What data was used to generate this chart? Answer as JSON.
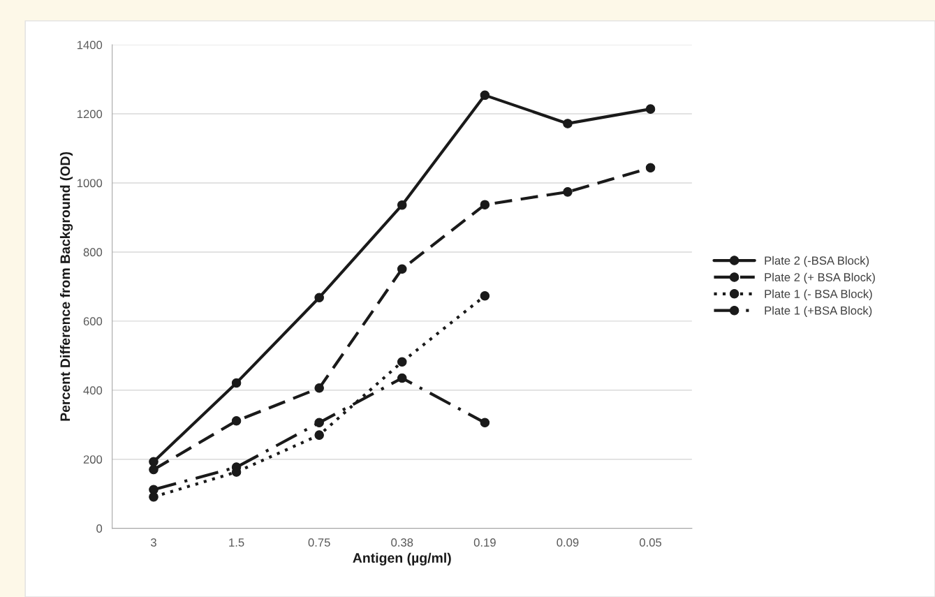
{
  "chart_data": {
    "type": "line",
    "xlabel": "Antigen (µg/ml)",
    "ylabel": "Percent Difference from Background (OD)",
    "categories": [
      "3",
      "1.5",
      "0.75",
      "0.38",
      "0.19",
      "0.09",
      "0.05"
    ],
    "series": [
      {
        "name": "Plate 2 (-BSA Block)",
        "color": "#1a1a1a",
        "line_style": "solid",
        "values": [
          193,
          421,
          668,
          936,
          1254,
          1172,
          1214
        ]
      },
      {
        "name": "Plate 2 (+ BSA Block)",
        "color": "#1a1a1a",
        "line_style": "dashed",
        "values": [
          170,
          311,
          406,
          751,
          937,
          974,
          1044
        ]
      },
      {
        "name": "Plate 1 (- BSA Block)",
        "color": "#1a1a1a",
        "line_style": "dotted",
        "values": [
          91,
          163,
          270,
          482,
          673,
          null,
          null
        ]
      },
      {
        "name": "Plate 1 (+BSA Block)",
        "color": "#1a1a1a",
        "line_style": "dashdot",
        "values": [
          112,
          177,
          306,
          435,
          306,
          null,
          null
        ]
      }
    ],
    "ylim": [
      0,
      1400
    ],
    "yticks": [
      0,
      200,
      400,
      600,
      800,
      1000,
      1200,
      1400
    ],
    "grid": "y",
    "legend": "right",
    "marker": "circle"
  }
}
